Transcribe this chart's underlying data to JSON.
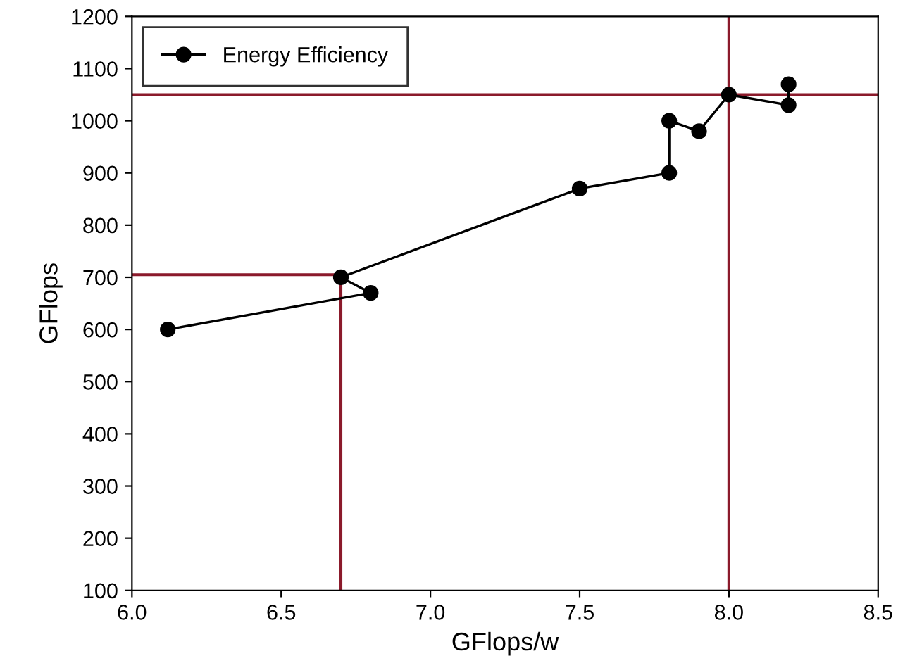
{
  "chart_data": {
    "type": "line",
    "xlabel": "GFlops/w",
    "ylabel": "GFlops",
    "xlim": [
      6.0,
      8.5
    ],
    "xticks": [
      {
        "value": 6.0,
        "label": "6.0"
      },
      {
        "value": 6.5,
        "label": "6.5"
      },
      {
        "value": 7.0,
        "label": "7.0"
      },
      {
        "value": 7.5,
        "label": "7.5"
      },
      {
        "value": 8.0,
        "label": "8.0"
      },
      {
        "value": 8.5,
        "label": "8.5"
      }
    ],
    "ylim": [
      100,
      1200
    ],
    "yticks": [
      100,
      200,
      300,
      400,
      500,
      600,
      700,
      800,
      900,
      1000,
      1100,
      1200
    ],
    "series": [
      {
        "name": "Energy Efficiency",
        "color": "#000000",
        "marker": "circle",
        "x": [
          6.12,
          6.8,
          6.7,
          7.5,
          7.8,
          7.8,
          7.9,
          8.0,
          8.2,
          8.2
        ],
        "values": [
          600,
          670,
          700,
          870,
          900,
          1000,
          980,
          1050,
          1030,
          1070
        ]
      },
      {
        "type": "line",
        "color": "#8b1a2b",
        "marker": "none",
        "x": [
          6.0,
          6.7,
          6.7
        ],
        "values": [
          705,
          705,
          100
        ]
      }
    ],
    "ref_lines": [
      {
        "axis": "y",
        "value": 1050,
        "color": "#8b1a2b"
      },
      {
        "axis": "x",
        "value": 8.0,
        "color": "#8b1a2b"
      }
    ],
    "legend": "top left",
    "grid": false
  }
}
